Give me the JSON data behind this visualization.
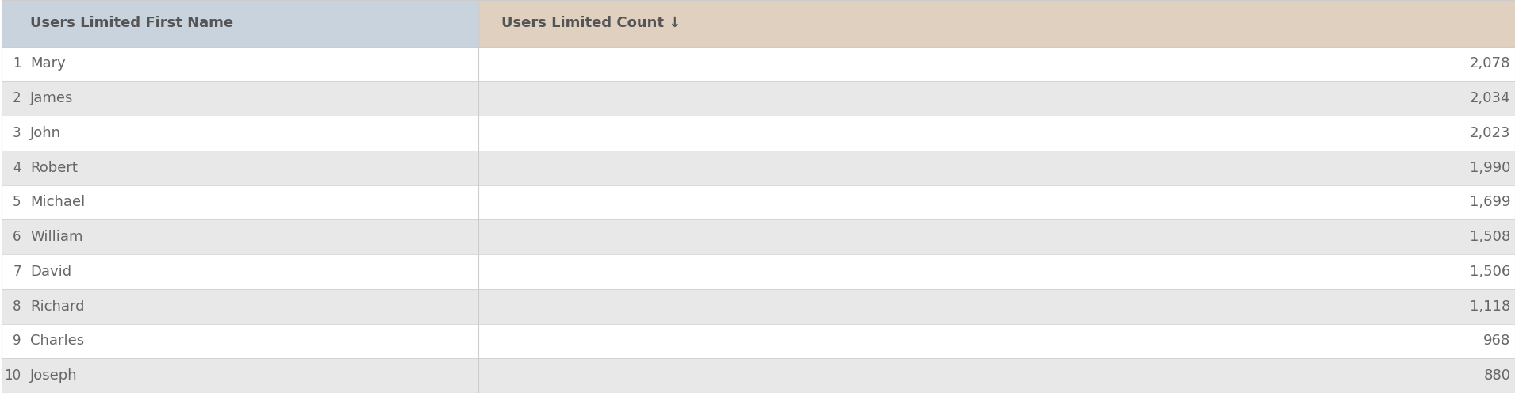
{
  "col1_header": "Users Limited First Name",
  "col2_header": "Users Limited Count ↓",
  "rows": [
    {
      "rank": 1,
      "name": "Mary",
      "count": "2,078"
    },
    {
      "rank": 2,
      "name": "James",
      "count": "2,034"
    },
    {
      "rank": 3,
      "name": "John",
      "count": "2,023"
    },
    {
      "rank": 4,
      "name": "Robert",
      "count": "1,990"
    },
    {
      "rank": 5,
      "name": "Michael",
      "count": "1,699"
    },
    {
      "rank": 6,
      "name": "William",
      "count": "1,508"
    },
    {
      "rank": 7,
      "name": "David",
      "count": "1,506"
    },
    {
      "rank": 8,
      "name": "Richard",
      "count": "1,118"
    },
    {
      "rank": 9,
      "name": "Charles",
      "count": "968"
    },
    {
      "rank": 10,
      "name": "Joseph",
      "count": "880"
    }
  ],
  "col1_split": 0.315,
  "header_col1_bg": "#c9d3de",
  "header_col2_bg": "#dfd0c0",
  "row_odd_col1_bg": "#ffffff",
  "row_even_col1_bg": "#e8e8e8",
  "row_odd_col2_bg_plain": "#ffffff",
  "row_odd_col2_bg_tinted": "#f2e8df",
  "row_even_col2_bg": "#e8e8e8",
  "text_color": "#666666",
  "header_text_color": "#555555",
  "border_color": "#cccccc",
  "font_size": 13,
  "header_font_size": 13
}
